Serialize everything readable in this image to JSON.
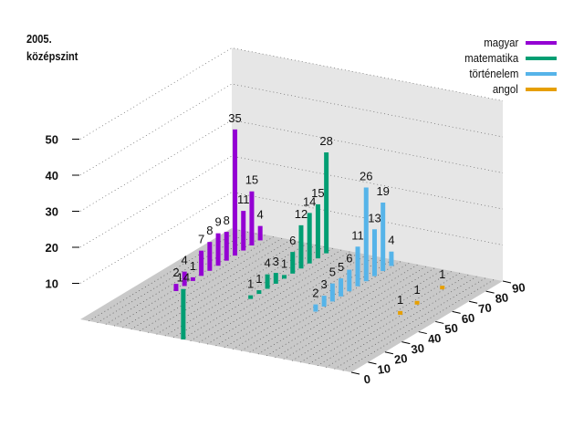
{
  "chart_data": {
    "type": "bar3d",
    "title": [
      "2005.",
      "középszint"
    ],
    "zlim": [
      0,
      50
    ],
    "z_ticks": [
      10,
      20,
      30,
      40,
      50
    ],
    "x_ticks": [
      0,
      10,
      20,
      30,
      40,
      50,
      60,
      70,
      80,
      90
    ],
    "xlim": [
      0,
      90
    ],
    "grid": true,
    "legend_position": "top-right",
    "series": [
      {
        "name": "magyar",
        "color": "#9400d3",
        "x": [
          35,
          40,
          45,
          50,
          55,
          60,
          65,
          70,
          75,
          80,
          85
        ],
        "values": [
          2,
          4,
          1,
          7,
          8,
          9,
          8,
          35,
          11,
          15,
          4
        ]
      },
      {
        "name": "matematika",
        "color": "#009e73",
        "x": [
          0,
          40,
          45,
          50,
          55,
          60,
          65,
          70,
          75,
          80,
          85
        ],
        "values": [
          14,
          1,
          1,
          4,
          3,
          1,
          6,
          12,
          14,
          15,
          28
        ]
      },
      {
        "name": "történelem",
        "color": "#56b4e9",
        "x": [
          40,
          45,
          50,
          55,
          60,
          65,
          70,
          75,
          80,
          85
        ],
        "values": [
          2,
          3,
          5,
          5,
          6,
          11,
          26,
          13,
          19,
          4
        ]
      },
      {
        "name": "angol",
        "color": "#e69f00",
        "x": [
          50,
          60,
          75
        ],
        "values": [
          1,
          1,
          1
        ]
      }
    ]
  }
}
